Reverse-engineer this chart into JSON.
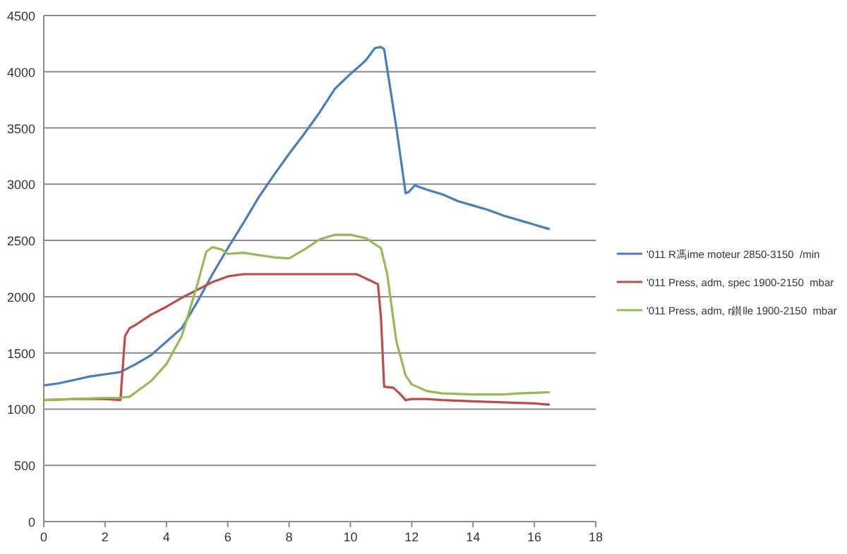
{
  "chart_data": {
    "type": "line",
    "xlim": [
      0,
      18
    ],
    "xticks": [
      0,
      2,
      4,
      6,
      8,
      10,
      12,
      14,
      16,
      18
    ],
    "ylim": [
      0,
      4500
    ],
    "yticks": [
      0,
      500,
      1000,
      1500,
      2000,
      2500,
      3000,
      3500,
      4000,
      4500
    ],
    "grid": "y",
    "legend": "right",
    "marker": "none",
    "line_style": "solid",
    "series": [
      {
        "name": "'011 R馮ime moteur 2850-3150  /min",
        "color": "#4a7ebb",
        "x": [
          0,
          0.5,
          1,
          1.5,
          2,
          2.5,
          3,
          3.5,
          4,
          4.5,
          5,
          5.5,
          6,
          6.5,
          7,
          7.5,
          8,
          8.5,
          9,
          9.5,
          10,
          10.5,
          10.8,
          11,
          11.1,
          11.5,
          11.8,
          11.9,
          12.1,
          12.5,
          13,
          13.5,
          14,
          14.5,
          15,
          15.5,
          16,
          16.5
        ],
        "values": [
          1210,
          1230,
          1260,
          1290,
          1310,
          1330,
          1400,
          1480,
          1600,
          1720,
          1950,
          2200,
          2430,
          2650,
          2880,
          3080,
          3270,
          3450,
          3640,
          3850,
          3980,
          4100,
          4210,
          4220,
          4200,
          3500,
          2920,
          2930,
          2990,
          2950,
          2910,
          2850,
          2810,
          2770,
          2720,
          2680,
          2640,
          2600
        ]
      },
      {
        "name": "'011 Press, adm, spec 1900-2150  mbar",
        "color": "#be4b48",
        "x": [
          0,
          1,
          2,
          2.5,
          2.65,
          2.8,
          3,
          3.5,
          4,
          4.5,
          5,
          5.5,
          6,
          6.5,
          8,
          10,
          10.2,
          10.6,
          10.9,
          11,
          11.1,
          11.4,
          11.6,
          11.8,
          12,
          12.5,
          13,
          14,
          15,
          16,
          16.5
        ],
        "values": [
          1080,
          1090,
          1090,
          1080,
          1650,
          1720,
          1750,
          1840,
          1910,
          1990,
          2060,
          2130,
          2180,
          2200,
          2200,
          2200,
          2200,
          2150,
          2110,
          1800,
          1200,
          1190,
          1140,
          1080,
          1090,
          1090,
          1080,
          1070,
          1060,
          1050,
          1040
        ]
      },
      {
        "name": "'011 Press, adm, r鑚lle 1900-2150  mbar",
        "color": "#98b954",
        "x": [
          0,
          1,
          2,
          2.5,
          2.8,
          3,
          3.5,
          4,
          4.5,
          5,
          5.3,
          5.5,
          5.8,
          6,
          6.5,
          7,
          7.5,
          8,
          8.5,
          9,
          9.5,
          10,
          10.5,
          11,
          11.2,
          11.5,
          11.8,
          12,
          12.5,
          13,
          14,
          15,
          15.5,
          16.5
        ],
        "values": [
          1080,
          1090,
          1100,
          1100,
          1110,
          1150,
          1250,
          1400,
          1650,
          2100,
          2400,
          2440,
          2420,
          2380,
          2390,
          2370,
          2350,
          2340,
          2420,
          2510,
          2550,
          2550,
          2520,
          2430,
          2200,
          1600,
          1300,
          1220,
          1160,
          1140,
          1130,
          1130,
          1140,
          1150
        ]
      }
    ]
  }
}
